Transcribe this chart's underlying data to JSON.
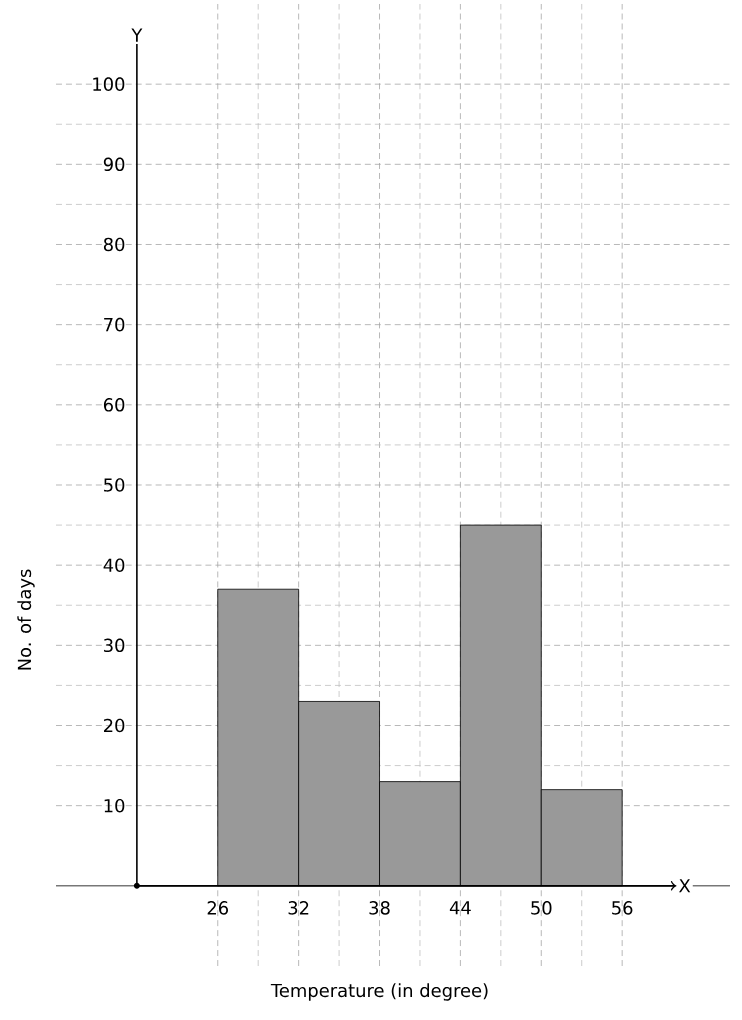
{
  "chart_data": {
    "type": "histogram",
    "xlabel": "Temperature (in degree)",
    "ylabel": "No. of days",
    "bins": [
      26,
      32,
      38,
      44,
      50,
      56
    ],
    "values": [
      37,
      23,
      13,
      45,
      12
    ],
    "color": "#999999",
    "xlim": [
      14,
      64
    ],
    "ylim": [
      -10,
      110
    ],
    "xticks": [
      26,
      32,
      38,
      44,
      50,
      56
    ],
    "yticks": [
      10,
      20,
      30,
      40,
      50,
      60,
      70,
      80,
      90,
      100
    ],
    "grid": true,
    "annotations": [
      "Y",
      "X"
    ]
  }
}
